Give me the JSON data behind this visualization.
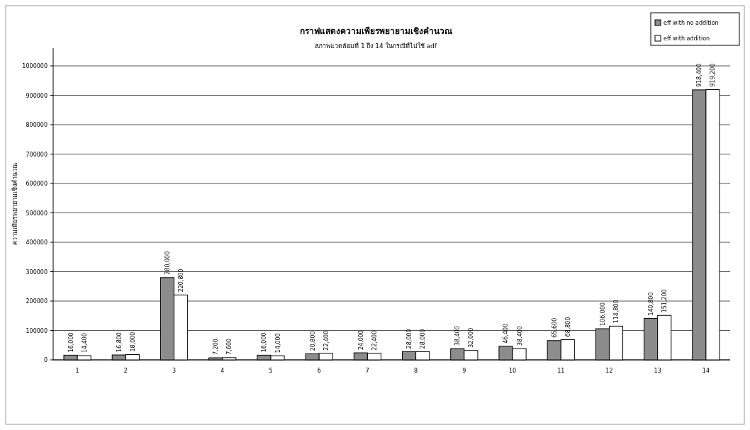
{
  "chart_data": {
    "type": "bar",
    "title": "กราฟแสดงความเพียรพยายามเชิงคำนวณ",
    "subtitle": "สภาพแวดล้อมที่ 1 ถึง 14 ในกรณีที่ไม่ใช้ adf",
    "ylabel": "ความเพียรพยายามเชิงคำนวณ",
    "categories": [
      "1",
      "2",
      "3",
      "4",
      "5",
      "6",
      "7",
      "8",
      "9",
      "10",
      "11",
      "12",
      "13",
      "14"
    ],
    "series": [
      {
        "name": "eff with no addition",
        "color": "#8c8c8c",
        "values": [
          16000,
          16800,
          280000,
          7200,
          16000,
          20800,
          24000,
          28000,
          38400,
          46400,
          65600,
          106000,
          140800,
          918400
        ],
        "value_labels": [
          "16,000",
          "16,800",
          "280,000",
          "7,200",
          "16,000",
          "20,800",
          "24,000",
          "28,000",
          "38,400",
          "46,400",
          "65,600",
          "106,000",
          "140,800",
          "918,400"
        ]
      },
      {
        "name": "eff with addition",
        "color": "#ffffff",
        "values": [
          14400,
          18000,
          220800,
          7600,
          14000,
          22400,
          22400,
          28000,
          32000,
          38400,
          68800,
          114800,
          151200,
          919200
        ],
        "value_labels": [
          "14,400",
          "18,000",
          "220,800",
          "7,600",
          "14,000",
          "22,400",
          "22,400",
          "28,000",
          "32,000",
          "38,400",
          "68,800",
          "114,800",
          "151,200",
          "919,200"
        ]
      }
    ],
    "ylim": [
      0,
      1060000
    ],
    "yticks": [
      0,
      100000,
      200000,
      300000,
      400000,
      500000,
      600000,
      700000,
      800000,
      900000,
      1000000
    ],
    "grid": "y",
    "legend": "top right"
  }
}
